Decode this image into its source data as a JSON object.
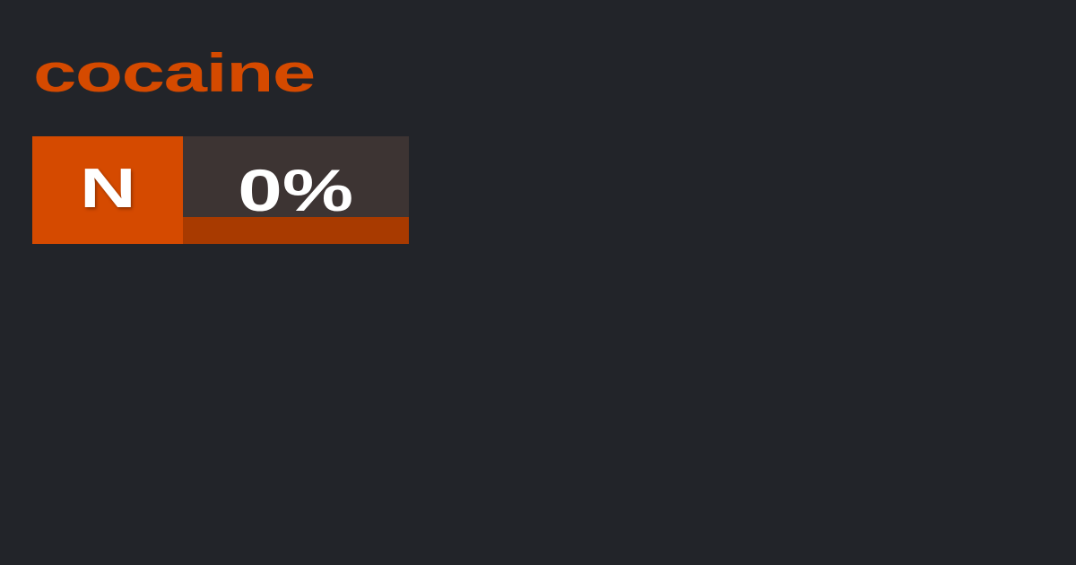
{
  "package_name": "cocaine",
  "grade": "N",
  "score_text": "0%",
  "score_value": 0,
  "colors": {
    "background": "#222429",
    "accent": "#d54a00",
    "score_bg": "#3d3433",
    "bar": "#a83a00"
  }
}
